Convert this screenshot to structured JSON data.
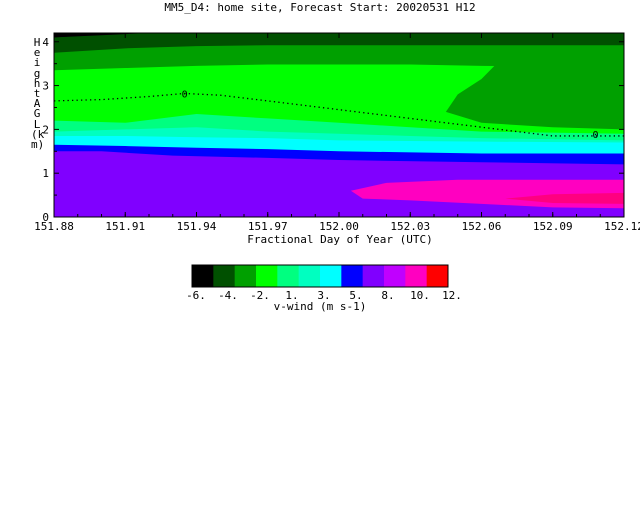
{
  "chart_data": {
    "type": "filled-contour",
    "title": "MM5_D4: home site,  Forecast Start: 20020531 H12",
    "xlabel": "Fractional Day of Year (UTC)",
    "ylabel": "Height AGL (km)",
    "xlim": [
      151.88,
      152.12
    ],
    "ylim": [
      0,
      4.2
    ],
    "x_ticks": [
      "151.88",
      "151.91",
      "151.94",
      "151.97",
      "152.00",
      "152.03",
      "152.06",
      "152.09",
      "152.12"
    ],
    "y_ticks": [
      "0",
      "1",
      "2",
      "3",
      "4"
    ],
    "contour_line_label": "0",
    "colorbar": {
      "label": "v-wind (m s-1)",
      "tick_labels": [
        "-6.",
        "-4.",
        "-2.",
        "1.",
        "3.",
        "5.",
        "8.",
        "10.",
        "12."
      ],
      "colors": [
        "#000000",
        "#005000",
        "#00a000",
        "#00ff00",
        "#00ff80",
        "#00ffc0",
        "#00ffff",
        "#0000ff",
        "#8000ff",
        "#c000ff",
        "#ff00c0",
        "#ff0000"
      ]
    },
    "bands": [
      {
        "color": "#8000ff",
        "top": [
          [
            151.88,
            1.5
          ],
          [
            151.9,
            1.5
          ],
          [
            151.93,
            1.4
          ],
          [
            151.97,
            1.35
          ],
          [
            152.0,
            1.3
          ],
          [
            152.06,
            1.25
          ],
          [
            152.12,
            1.2
          ]
        ]
      },
      {
        "color": "#0000ff",
        "top": [
          [
            151.88,
            1.65
          ],
          [
            151.91,
            1.62
          ],
          [
            151.94,
            1.58
          ],
          [
            151.97,
            1.55
          ],
          [
            152.0,
            1.5
          ],
          [
            152.06,
            1.45
          ],
          [
            152.12,
            1.45
          ]
        ]
      },
      {
        "color": "#00ffff",
        "top": [
          [
            151.88,
            1.85
          ],
          [
            151.91,
            1.85
          ],
          [
            151.94,
            1.82
          ],
          [
            151.97,
            1.8
          ],
          [
            152.0,
            1.75
          ],
          [
            152.06,
            1.72
          ],
          [
            152.12,
            1.7
          ]
        ]
      },
      {
        "color": "#00ffc0",
        "top": [
          [
            151.88,
            1.95
          ],
          [
            151.91,
            2.0
          ],
          [
            151.94,
            2.05
          ],
          [
            151.97,
            1.95
          ],
          [
            152.0,
            1.9
          ],
          [
            152.03,
            1.85
          ],
          [
            152.06,
            1.8
          ],
          [
            152.12,
            1.75
          ]
        ]
      },
      {
        "color": "#00ff80",
        "top": [
          [
            151.88,
            2.2
          ],
          [
            151.91,
            2.15
          ],
          [
            151.94,
            2.35
          ],
          [
            151.97,
            2.25
          ],
          [
            152.0,
            2.15
          ],
          [
            152.03,
            2.05
          ],
          [
            152.06,
            1.95
          ],
          [
            152.12,
            1.9
          ]
        ]
      },
      {
        "color": "#00ff00",
        "top": [
          [
            151.88,
            3.35
          ],
          [
            151.91,
            3.4
          ],
          [
            151.94,
            3.45
          ],
          [
            151.97,
            3.48
          ],
          [
            152.0,
            3.48
          ],
          [
            152.03,
            3.48
          ],
          [
            152.06,
            3.45
          ],
          [
            152.12,
            3.42
          ]
        ]
      },
      {
        "color": "#00a000",
        "top": [
          [
            151.88,
            3.75
          ],
          [
            151.91,
            3.85
          ],
          [
            151.94,
            3.9
          ],
          [
            151.97,
            3.92
          ],
          [
            152.0,
            3.92
          ],
          [
            152.06,
            3.92
          ],
          [
            152.12,
            3.92
          ]
        ]
      },
      {
        "color": "#005000",
        "top": [
          [
            151.88,
            4.1
          ],
          [
            151.9,
            4.15
          ],
          [
            151.92,
            4.2
          ],
          [
            152.12,
            4.2
          ]
        ]
      }
    ],
    "patches": [
      {
        "color": "#00a000",
        "points": [
          [
            152.066,
            3.48
          ],
          [
            152.12,
            3.48
          ],
          [
            152.12,
            2.0
          ],
          [
            152.09,
            2.05
          ],
          [
            152.06,
            2.15
          ],
          [
            152.045,
            2.4
          ],
          [
            152.05,
            2.8
          ],
          [
            152.06,
            3.15
          ]
        ]
      },
      {
        "color": "#ff00c0",
        "points": [
          [
            152.12,
            0.85
          ],
          [
            152.05,
            0.85
          ],
          [
            152.02,
            0.78
          ],
          [
            152.005,
            0.6
          ],
          [
            152.01,
            0.42
          ],
          [
            152.03,
            0.38
          ],
          [
            152.06,
            0.3
          ],
          [
            152.09,
            0.22
          ],
          [
            152.12,
            0.2
          ]
        ]
      },
      {
        "color": "#ff0080",
        "points": [
          [
            152.12,
            0.55
          ],
          [
            152.09,
            0.52
          ],
          [
            152.07,
            0.42
          ],
          [
            152.09,
            0.32
          ],
          [
            152.12,
            0.3
          ]
        ]
      },
      {
        "color": "#000000",
        "points": [
          [
            151.88,
            4.2
          ],
          [
            151.88,
            4.1
          ],
          [
            151.895,
            4.15
          ],
          [
            151.905,
            4.2
          ]
        ]
      }
    ],
    "zero_contour": [
      [
        151.88,
        2.65
      ],
      [
        151.9,
        2.68
      ],
      [
        151.92,
        2.75
      ],
      [
        151.935,
        2.82
      ],
      [
        151.95,
        2.78
      ],
      [
        151.97,
        2.65
      ],
      [
        152.0,
        2.45
      ],
      [
        152.03,
        2.25
      ],
      [
        152.06,
        2.05
      ],
      [
        152.09,
        1.85
      ],
      [
        152.12,
        1.85
      ]
    ]
  }
}
